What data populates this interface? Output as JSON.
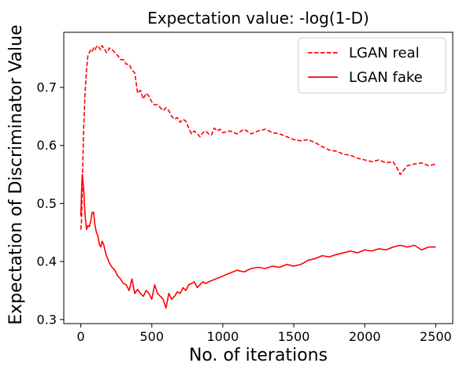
{
  "chart_data": {
    "type": "line",
    "title": "Expectation value: -log(1-D)",
    "xlabel": "No. of iterations",
    "ylabel": "Expectation of Discriminator Value",
    "xlim": [
      -120,
      2620
    ],
    "ylim": [
      0.293,
      0.795
    ],
    "xticks": [
      0,
      500,
      1000,
      1500,
      2000,
      2500
    ],
    "yticks": [
      0.3,
      0.4,
      0.5,
      0.6,
      0.7
    ],
    "xtick_labels": [
      "0",
      "500",
      "1000",
      "1500",
      "2000",
      "2500"
    ],
    "ytick_labels": [
      "0.3",
      "0.4",
      "0.5",
      "0.6",
      "0.7"
    ],
    "grid": false,
    "legend_position": "top-right",
    "series": [
      {
        "name": "LGAN real",
        "color": "#ff0000",
        "dash": "dashed",
        "x": [
          0,
          5,
          10,
          15,
          20,
          30,
          40,
          50,
          60,
          70,
          80,
          90,
          100,
          110,
          120,
          130,
          140,
          150,
          160,
          170,
          180,
          190,
          200,
          220,
          240,
          260,
          280,
          300,
          320,
          340,
          360,
          380,
          400,
          420,
          440,
          460,
          480,
          500,
          520,
          540,
          560,
          580,
          600,
          620,
          640,
          660,
          680,
          700,
          720,
          740,
          760,
          780,
          800,
          820,
          840,
          860,
          880,
          900,
          920,
          940,
          960,
          980,
          1000,
          1050,
          1100,
          1150,
          1200,
          1250,
          1300,
          1350,
          1400,
          1450,
          1500,
          1550,
          1600,
          1650,
          1700,
          1750,
          1800,
          1850,
          1900,
          1950,
          2000,
          2050,
          2100,
          2150,
          2200,
          2230,
          2250,
          2300,
          2350,
          2400,
          2450,
          2500
        ],
        "values": [
          0.455,
          0.47,
          0.52,
          0.58,
          0.63,
          0.69,
          0.73,
          0.755,
          0.76,
          0.765,
          0.762,
          0.768,
          0.765,
          0.77,
          0.772,
          0.768,
          0.765,
          0.772,
          0.768,
          0.765,
          0.76,
          0.762,
          0.768,
          0.765,
          0.76,
          0.755,
          0.748,
          0.748,
          0.74,
          0.74,
          0.73,
          0.725,
          0.69,
          0.695,
          0.68,
          0.69,
          0.685,
          0.675,
          0.67,
          0.67,
          0.665,
          0.66,
          0.665,
          0.66,
          0.65,
          0.645,
          0.648,
          0.64,
          0.645,
          0.642,
          0.63,
          0.62,
          0.625,
          0.62,
          0.615,
          0.622,
          0.625,
          0.62,
          0.618,
          0.63,
          0.625,
          0.628,
          0.622,
          0.625,
          0.62,
          0.628,
          0.62,
          0.625,
          0.628,
          0.622,
          0.62,
          0.615,
          0.61,
          0.608,
          0.61,
          0.605,
          0.598,
          0.592,
          0.59,
          0.585,
          0.583,
          0.578,
          0.575,
          0.572,
          0.575,
          0.57,
          0.572,
          0.56,
          0.55,
          0.565,
          0.568,
          0.57,
          0.565,
          0.568
        ]
      },
      {
        "name": "LGAN fake",
        "color": "#ff0000",
        "dash": "solid",
        "x": [
          0,
          5,
          10,
          15,
          20,
          25,
          30,
          40,
          50,
          60,
          70,
          80,
          90,
          100,
          110,
          120,
          130,
          140,
          150,
          160,
          170,
          180,
          190,
          200,
          220,
          240,
          260,
          280,
          300,
          320,
          340,
          360,
          380,
          400,
          420,
          440,
          460,
          480,
          500,
          520,
          540,
          560,
          580,
          600,
          620,
          640,
          660,
          680,
          700,
          720,
          740,
          760,
          780,
          800,
          820,
          840,
          860,
          880,
          900,
          950,
          1000,
          1050,
          1100,
          1150,
          1200,
          1250,
          1300,
          1350,
          1400,
          1450,
          1500,
          1550,
          1600,
          1650,
          1700,
          1750,
          1800,
          1850,
          1900,
          1950,
          2000,
          2050,
          2100,
          2150,
          2200,
          2250,
          2300,
          2350,
          2400,
          2450,
          2500
        ],
        "values": [
          0.478,
          0.52,
          0.55,
          0.54,
          0.525,
          0.5,
          0.48,
          0.455,
          0.462,
          0.46,
          0.47,
          0.485,
          0.485,
          0.462,
          0.45,
          0.445,
          0.43,
          0.425,
          0.435,
          0.43,
          0.42,
          0.41,
          0.405,
          0.398,
          0.39,
          0.385,
          0.375,
          0.37,
          0.362,
          0.36,
          0.35,
          0.37,
          0.345,
          0.352,
          0.345,
          0.34,
          0.35,
          0.345,
          0.335,
          0.36,
          0.345,
          0.34,
          0.335,
          0.32,
          0.345,
          0.335,
          0.34,
          0.348,
          0.345,
          0.355,
          0.35,
          0.36,
          0.362,
          0.365,
          0.355,
          0.36,
          0.365,
          0.362,
          0.365,
          0.37,
          0.375,
          0.38,
          0.385,
          0.382,
          0.388,
          0.39,
          0.388,
          0.392,
          0.39,
          0.395,
          0.392,
          0.395,
          0.402,
          0.405,
          0.41,
          0.408,
          0.412,
          0.415,
          0.418,
          0.415,
          0.42,
          0.418,
          0.422,
          0.42,
          0.425,
          0.428,
          0.425,
          0.428,
          0.42,
          0.425,
          0.425
        ]
      }
    ]
  }
}
